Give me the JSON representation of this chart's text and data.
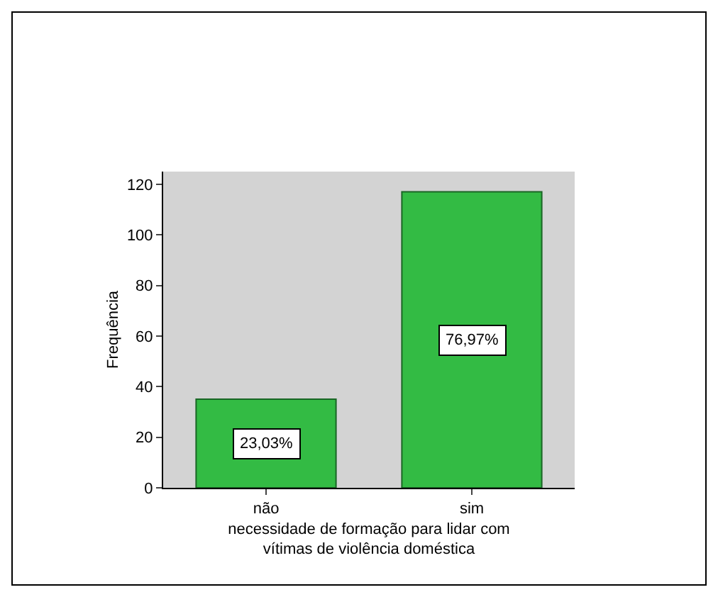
{
  "chart_data": {
    "type": "bar",
    "ylabel": "Frequência",
    "xlabel": "necessidade de formação para lidar com\nvítimas de violência doméstica",
    "categories": [
      "não",
      "sim"
    ],
    "values": [
      35,
      117
    ],
    "annotations": [
      "23,03%",
      "76,97%"
    ],
    "color": "#33bb44",
    "ylim": [
      0,
      125
    ],
    "yticks": [
      0,
      20,
      40,
      60,
      80,
      100,
      120
    ],
    "grid": false
  }
}
